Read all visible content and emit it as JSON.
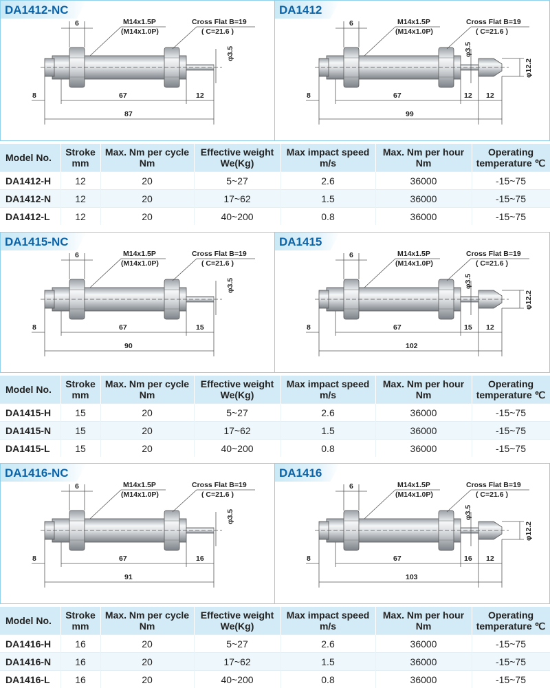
{
  "colors": {
    "accent": "#0a63a8",
    "panel_border": "#8fd0ea",
    "header_bg": "#d3ebf6",
    "row_alt": "#eef7fb"
  },
  "table_headers": [
    [
      "Model No.",
      ""
    ],
    [
      "Stroke",
      "mm"
    ],
    [
      "Max. Nm per cycle",
      "Nm"
    ],
    [
      "Effective weight",
      "We(Kg)"
    ],
    [
      "Max impact speed",
      "m/s"
    ],
    [
      "Max. Nm per hour",
      "Nm"
    ],
    [
      "Operating",
      "temperature ℃"
    ]
  ],
  "callouts": {
    "thread": "M14x1.5P",
    "thread_alt": "(M14x1.0P)",
    "cross_flat": "Cross Flat B=19",
    "cross_flat_c": "( C=21.6 )",
    "rod_dia": "φ3.5",
    "cap_dia": "φ12.2",
    "nut_width": "6",
    "front": "8",
    "body": "67",
    "cap": "12"
  },
  "sections": [
    {
      "nc_title": "DA1412-NC",
      "title": "DA1412",
      "stroke_dim": "12",
      "nc_total": "87",
      "total": "99",
      "rows": [
        {
          "model": "DA1412-H",
          "stroke": "12",
          "nm_cycle": "20",
          "weight": "5~27",
          "speed": "2.6",
          "nm_hour": "36000",
          "temp": "-15~75"
        },
        {
          "model": "DA1412-N",
          "stroke": "12",
          "nm_cycle": "20",
          "weight": "17~62",
          "speed": "1.5",
          "nm_hour": "36000",
          "temp": "-15~75"
        },
        {
          "model": "DA1412-L",
          "stroke": "12",
          "nm_cycle": "20",
          "weight": "40~200",
          "speed": "0.8",
          "nm_hour": "36000",
          "temp": "-15~75"
        }
      ]
    },
    {
      "nc_title": "DA1415-NC",
      "title": "DA1415",
      "stroke_dim": "15",
      "nc_total": "90",
      "total": "102",
      "rows": [
        {
          "model": "DA1415-H",
          "stroke": "15",
          "nm_cycle": "20",
          "weight": "5~27",
          "speed": "2.6",
          "nm_hour": "36000",
          "temp": "-15~75"
        },
        {
          "model": "DA1415-N",
          "stroke": "15",
          "nm_cycle": "20",
          "weight": "17~62",
          "speed": "1.5",
          "nm_hour": "36000",
          "temp": "-15~75"
        },
        {
          "model": "DA1415-L",
          "stroke": "15",
          "nm_cycle": "20",
          "weight": "40~200",
          "speed": "0.8",
          "nm_hour": "36000",
          "temp": "-15~75"
        }
      ]
    },
    {
      "nc_title": "DA1416-NC",
      "title": "DA1416",
      "stroke_dim": "16",
      "nc_total": "91",
      "total": "103",
      "rows": [
        {
          "model": "DA1416-H",
          "stroke": "16",
          "nm_cycle": "20",
          "weight": "5~27",
          "speed": "2.6",
          "nm_hour": "36000",
          "temp": "-15~75"
        },
        {
          "model": "DA1416-N",
          "stroke": "16",
          "nm_cycle": "20",
          "weight": "17~62",
          "speed": "1.5",
          "nm_hour": "36000",
          "temp": "-15~75"
        },
        {
          "model": "DA1416-L",
          "stroke": "16",
          "nm_cycle": "20",
          "weight": "40~200",
          "speed": "0.8",
          "nm_hour": "36000",
          "temp": "-15~75"
        }
      ]
    }
  ]
}
